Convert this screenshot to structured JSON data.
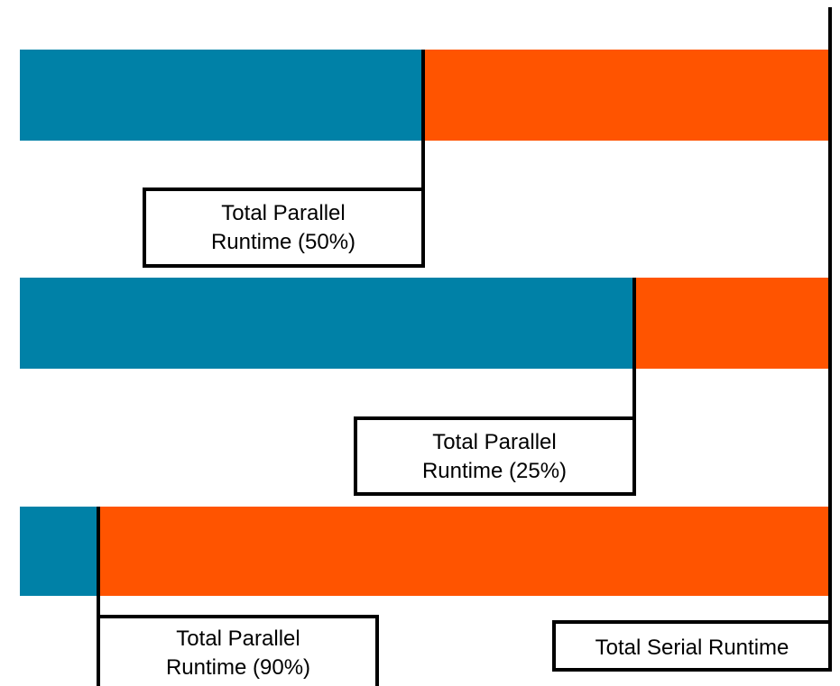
{
  "colors": {
    "parallel": "#0081A7",
    "serial": "#FF5400",
    "line": "#000000",
    "background": "#FFFFFF"
  },
  "bars": [
    {
      "parallel_fraction": 0.5,
      "label_line1": "Total Parallel",
      "label_line2": "Runtime (50%)"
    },
    {
      "parallel_fraction": 0.75,
      "label_line1": "Total Parallel",
      "label_line2": "Runtime (25%)"
    },
    {
      "parallel_fraction": 0.1,
      "label_line1": "Total Parallel",
      "label_line2": "Runtime (90%)"
    }
  ],
  "serial_label": "Total Serial Runtime"
}
